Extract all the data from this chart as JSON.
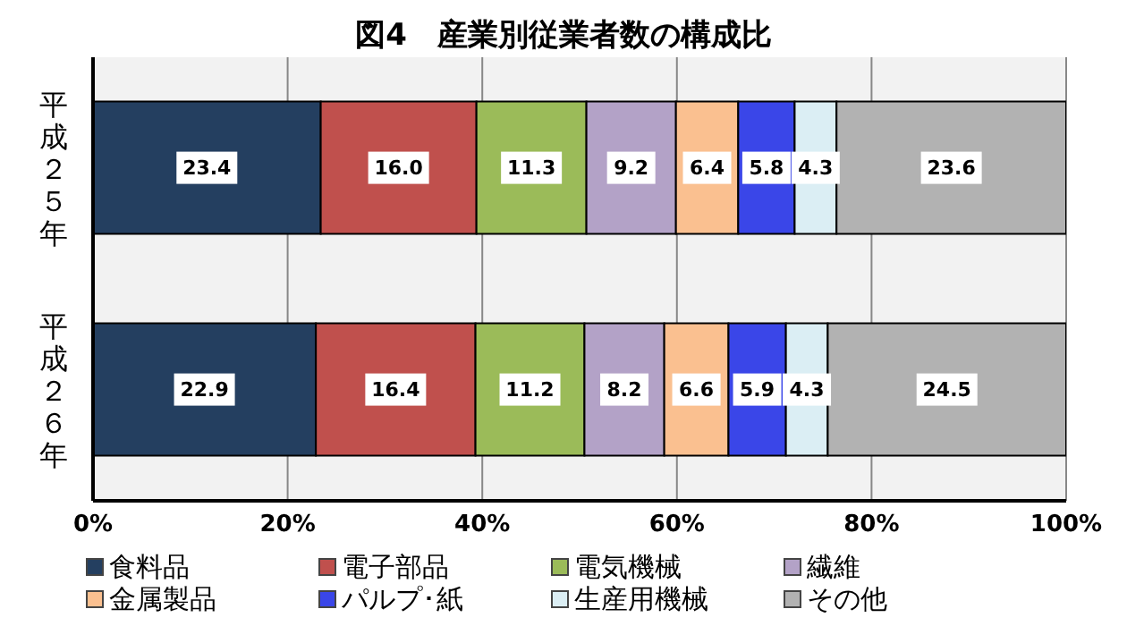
{
  "chart_data": {
    "type": "bar",
    "title": "図4　産業別従業者数の構成比",
    "orientation": "horizontal",
    "stacked": true,
    "categories": [
      "平成２５年",
      "平成２６年"
    ],
    "series": [
      {
        "name": "食料品",
        "color": "#243f60",
        "values": [
          23.4,
          22.9
        ],
        "value_labels": [
          "23.4",
          "22.9"
        ]
      },
      {
        "name": "電子部品",
        "color": "#c0504d",
        "values": [
          16.0,
          16.4
        ],
        "value_labels": [
          "16.0",
          "16.4"
        ]
      },
      {
        "name": "電気機械",
        "color": "#9bbb59",
        "values": [
          11.3,
          11.2
        ],
        "value_labels": [
          "11.3",
          "11.2"
        ]
      },
      {
        "name": "繊維",
        "color": "#b3a2c7",
        "values": [
          9.2,
          8.2
        ],
        "value_labels": [
          "9.2",
          "8.2"
        ]
      },
      {
        "name": "金属製品",
        "color": "#fac090",
        "values": [
          6.4,
          6.6
        ],
        "value_labels": [
          "6.4",
          "6.6"
        ]
      },
      {
        "name": "パルプ･紙",
        "color": "#3a46e8",
        "values": [
          5.8,
          5.9
        ],
        "value_labels": [
          "5.8",
          "5.9"
        ]
      },
      {
        "name": "生産用機械",
        "color": "#dbeef4",
        "values": [
          4.3,
          4.3
        ],
        "value_labels": [
          "4.3",
          "4.3"
        ]
      },
      {
        "name": "その他",
        "color": "#b2b2b2",
        "values": [
          23.6,
          24.5
        ],
        "value_labels": [
          "23.6",
          "24.5"
        ]
      }
    ],
    "xlim": [
      0,
      100
    ],
    "xticks": [
      {
        "value": 0,
        "label": "0%"
      },
      {
        "value": 20,
        "label": "20%"
      },
      {
        "value": 40,
        "label": "40%"
      },
      {
        "value": 60,
        "label": "60%"
      },
      {
        "value": 80,
        "label": "80%"
      },
      {
        "value": 100,
        "label": "100%"
      }
    ],
    "grid": "x",
    "legend": "bottom"
  }
}
